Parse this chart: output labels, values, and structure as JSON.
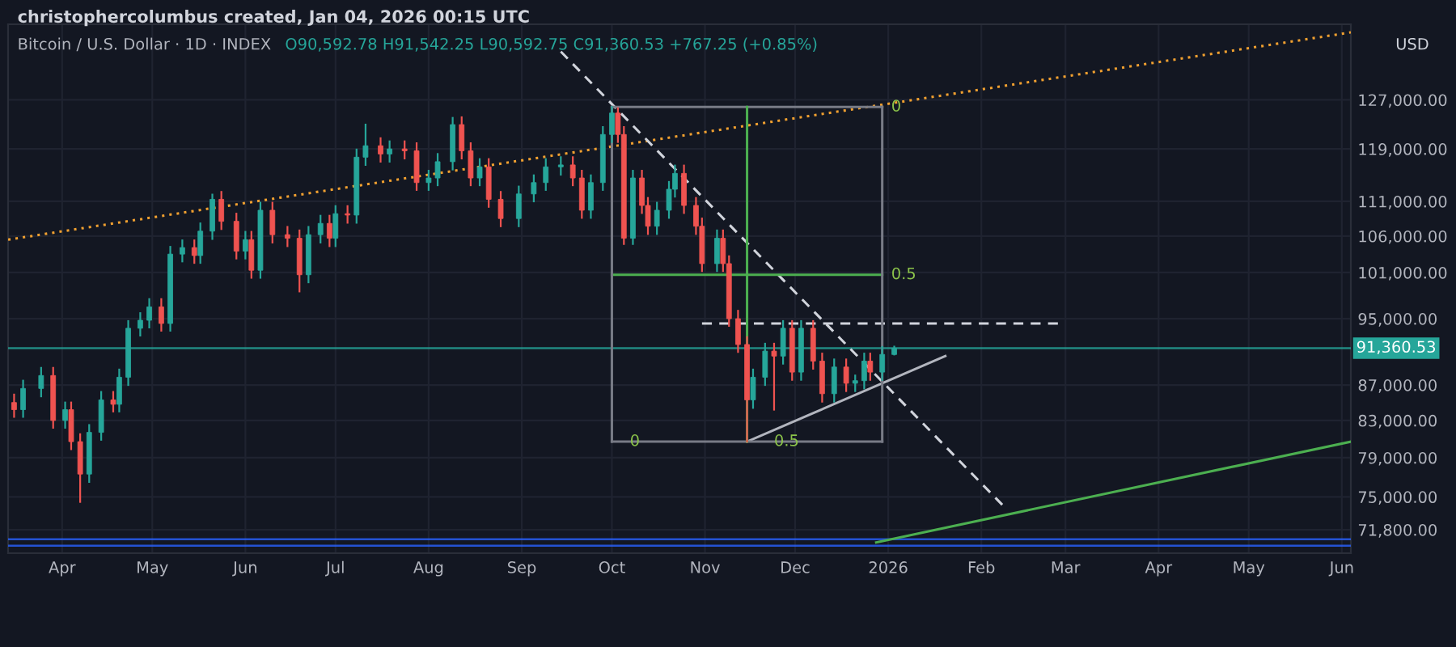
{
  "chart_data": {
    "type": "candlestick",
    "title": "Bitcoin / U.S. Dollar · 1D · INDEX",
    "subtitle": "O90,592.78 H91,542.25 L90,592.75 C91,360.53 +767.25 (+0.85%)",
    "annotations": [
      "christophercolumbus created, Jan 04, 2026 00:15 UTC",
      "USD",
      {
        "text": "0",
        "x": "2025-12-30",
        "y": 125800
      },
      {
        "text": "0.5",
        "x": "2025-12-30",
        "y": 100700
      },
      {
        "text": "0",
        "x": "2025-10-04",
        "y": 80700
      },
      {
        "text": "0.5",
        "x": "2025-11-21",
        "y": 80700
      }
    ],
    "x": [
      "2025-03-16",
      "2025-03-19",
      "2025-03-25",
      "2025-03-29",
      "2025-04-02",
      "2025-04-04",
      "2025-04-07",
      "2025-04-10",
      "2025-04-14",
      "2025-04-18",
      "2025-04-20",
      "2025-04-23",
      "2025-04-27",
      "2025-04-30",
      "2025-05-04",
      "2025-05-07",
      "2025-05-11",
      "2025-05-15",
      "2025-05-17",
      "2025-05-21",
      "2025-05-24",
      "2025-05-29",
      "2025-06-01",
      "2025-06-03",
      "2025-06-06",
      "2025-06-10",
      "2025-06-15",
      "2025-06-19",
      "2025-06-22",
      "2025-06-26",
      "2025-06-29",
      "2025-07-01",
      "2025-07-05",
      "2025-07-08",
      "2025-07-11",
      "2025-07-16",
      "2025-07-19",
      "2025-07-24",
      "2025-07-28",
      "2025-08-01",
      "2025-08-04",
      "2025-08-09",
      "2025-08-12",
      "2025-08-15",
      "2025-08-18",
      "2025-08-21",
      "2025-08-25",
      "2025-08-31",
      "2025-09-05",
      "2025-09-09",
      "2025-09-14",
      "2025-09-18",
      "2025-09-21",
      "2025-09-24",
      "2025-09-28",
      "2025-10-01",
      "2025-10-03",
      "2025-10-05",
      "2025-10-08",
      "2025-10-11",
      "2025-10-13",
      "2025-10-16",
      "2025-10-20",
      "2025-10-22",
      "2025-10-25",
      "2025-10-29",
      "2025-10-31",
      "2025-11-05",
      "2025-11-07",
      "2025-11-09",
      "2025-11-12",
      "2025-11-15",
      "2025-11-17",
      "2025-11-21",
      "2025-11-24",
      "2025-11-27",
      "2025-11-30",
      "2025-12-03",
      "2025-12-07",
      "2025-12-10",
      "2025-12-14",
      "2025-12-18",
      "2025-12-21",
      "2025-12-24",
      "2025-12-26",
      "2025-12-30",
      "2026-01-03"
    ],
    "ohlc": [
      [
        85000,
        85900,
        83400,
        84200
      ],
      [
        84200,
        87500,
        83400,
        86600
      ],
      [
        86600,
        89000,
        85700,
        88100
      ],
      [
        88100,
        89000,
        82200,
        83000
      ],
      [
        83000,
        85000,
        82200,
        84200
      ],
      [
        84200,
        85000,
        79900,
        80700
      ],
      [
        80700,
        81500,
        74500,
        77300
      ],
      [
        77300,
        82500,
        76500,
        81700
      ],
      [
        81700,
        86200,
        80900,
        85300
      ],
      [
        85300,
        86200,
        84000,
        84800
      ],
      [
        84800,
        88800,
        84000,
        87900
      ],
      [
        87900,
        94700,
        87000,
        93800
      ],
      [
        93800,
        95700,
        92900,
        94800
      ],
      [
        94800,
        97500,
        93900,
        96500
      ],
      [
        96500,
        97500,
        93500,
        94400
      ],
      [
        94400,
        104500,
        93500,
        103500
      ],
      [
        103500,
        105400,
        102500,
        104400
      ],
      [
        104400,
        105400,
        102300,
        103300
      ],
      [
        103300,
        107800,
        102300,
        106700
      ],
      [
        106700,
        112000,
        105600,
        111300
      ],
      [
        111300,
        112400,
        107000,
        108100
      ],
      [
        108100,
        109200,
        102900,
        103900
      ],
      [
        103900,
        106600,
        102900,
        105500
      ],
      [
        105500,
        106600,
        100300,
        101300
      ],
      [
        101300,
        110800,
        100300,
        109700
      ],
      [
        109700,
        110800,
        105100,
        106200
      ],
      [
        106200,
        107300,
        104600,
        105700
      ],
      [
        105700,
        106800,
        98500,
        100700
      ],
      [
        100700,
        107300,
        99700,
        106200
      ],
      [
        106200,
        108900,
        105100,
        107800
      ],
      [
        107800,
        108900,
        104600,
        105700
      ],
      [
        105700,
        110300,
        104600,
        109200
      ],
      [
        109200,
        110300,
        107900,
        109000
      ],
      [
        109000,
        118900,
        107900,
        117700
      ],
      [
        117700,
        122900,
        116500,
        119500
      ],
      [
        119500,
        120700,
        117000,
        118200
      ],
      [
        118200,
        120200,
        117000,
        119000
      ],
      [
        119000,
        120200,
        117500,
        118700
      ],
      [
        118700,
        119900,
        112700,
        113800
      ],
      [
        113800,
        115600,
        112700,
        114500
      ],
      [
        114500,
        118200,
        113400,
        117000
      ],
      [
        117000,
        124000,
        115800,
        122900
      ],
      [
        122900,
        124100,
        117500,
        118700
      ],
      [
        118700,
        119900,
        113400,
        114500
      ],
      [
        114500,
        117400,
        113400,
        116200
      ],
      [
        116200,
        117400,
        110200,
        111300
      ],
      [
        111300,
        112400,
        107400,
        108500
      ],
      [
        108500,
        113200,
        107400,
        112100
      ],
      [
        112100,
        114900,
        111000,
        113800
      ],
      [
        113800,
        117400,
        112700,
        116200
      ],
      [
        116200,
        117700,
        115000,
        116500
      ],
      [
        116500,
        117700,
        113400,
        114500
      ],
      [
        114500,
        115600,
        108600,
        109700
      ],
      [
        109700,
        114900,
        108600,
        113800
      ],
      [
        113800,
        122500,
        112700,
        121300
      ],
      [
        121300,
        125800,
        120100,
        124800
      ],
      [
        124800,
        125600,
        120100,
        121300
      ],
      [
        121300,
        122500,
        104900,
        105700
      ],
      [
        105700,
        115600,
        104900,
        114500
      ],
      [
        114500,
        115600,
        109300,
        110400
      ],
      [
        110400,
        111500,
        106300,
        107400
      ],
      [
        107400,
        110800,
        106300,
        109700
      ],
      [
        109700,
        113900,
        108600,
        112800
      ],
      [
        112800,
        116400,
        111700,
        115200
      ],
      [
        115200,
        116400,
        109300,
        110400
      ],
      [
        110400,
        111500,
        106300,
        107400
      ],
      [
        107400,
        108500,
        101200,
        102200
      ],
      [
        102200,
        106800,
        101200,
        105700
      ],
      [
        105700,
        106800,
        101200,
        102200
      ],
      [
        102200,
        103200,
        94100,
        95000
      ],
      [
        95000,
        96000,
        90900,
        91800
      ],
      [
        91800,
        92700,
        80700,
        85300
      ],
      [
        85300,
        88800,
        84400,
        87900
      ],
      [
        87900,
        91900,
        87000,
        91000
      ],
      [
        91000,
        91900,
        84200,
        90400
      ],
      [
        90400,
        94700,
        89500,
        93800
      ],
      [
        93800,
        94700,
        87600,
        88500
      ],
      [
        88500,
        94700,
        87600,
        93800
      ],
      [
        93800,
        94700,
        88900,
        89800
      ],
      [
        89800,
        90700,
        85100,
        86000
      ],
      [
        86000,
        90000,
        85100,
        89100
      ],
      [
        89100,
        90000,
        86300,
        87200
      ],
      [
        87200,
        88100,
        86300,
        87500
      ],
      [
        87500,
        90700,
        86600,
        89800
      ],
      [
        89800,
        90700,
        87600,
        88500
      ],
      [
        88500,
        91500,
        87600,
        90600
      ],
      [
        90592.78,
        91542.25,
        90592.75,
        91360.53
      ]
    ],
    "colors": [
      "#ef5350",
      "#26a69a",
      "#26a69a",
      "#ef5350",
      "#26a69a",
      "#ef5350",
      "#ef5350",
      "#26a69a",
      "#26a69a",
      "#ef5350",
      "#26a69a",
      "#26a69a",
      "#26a69a",
      "#26a69a",
      "#ef5350",
      "#26a69a",
      "#26a69a",
      "#ef5350",
      "#26a69a",
      "#26a69a",
      "#ef5350",
      "#ef5350",
      "#26a69a",
      "#ef5350",
      "#26a69a",
      "#ef5350",
      "#ef5350",
      "#ef5350",
      "#26a69a",
      "#26a69a",
      "#ef5350",
      "#26a69a",
      "#ef5350",
      "#26a69a",
      "#26a69a",
      "#ef5350",
      "#26a69a",
      "#ef5350",
      "#ef5350",
      "#26a69a",
      "#26a69a",
      "#26a69a",
      "#ef5350",
      "#ef5350",
      "#26a69a",
      "#ef5350",
      "#ef5350",
      "#26a69a",
      "#26a69a",
      "#26a69a",
      "#26a69a",
      "#ef5350",
      "#ef5350",
      "#26a69a",
      "#26a69a",
      "#26a69a",
      "#ef5350",
      "#ef5350",
      "#26a69a",
      "#ef5350",
      "#ef5350",
      "#26a69a",
      "#26a69a",
      "#26a69a",
      "#ef5350",
      "#ef5350",
      "#ef5350",
      "#26a69a",
      "#ef5350",
      "#ef5350",
      "#ef5350",
      "#ef5350",
      "#26a69a",
      "#26a69a",
      "#ef5350",
      "#26a69a",
      "#ef5350",
      "#26a69a",
      "#ef5350",
      "#ef5350",
      "#26a69a",
      "#ef5350",
      "#26a69a",
      "#26a69a",
      "#ef5350",
      "#26a69a",
      "#26a69a"
    ],
    "series": [
      {
        "type": "line",
        "color": "#f0a030",
        "line_style": "dotted",
        "x": [
          "2025-03-14",
          "2026-06-04"
        ],
        "values": [
          105500,
          138900
        ]
      },
      {
        "type": "line",
        "color": "#d1d4dc",
        "line_style": "dashed",
        "x": [
          "2025-09-14",
          "2026-02-08"
        ],
        "values": [
          135400,
          74200
        ]
      },
      {
        "type": "line",
        "color": "#b2b5be",
        "line_style": "solid",
        "x": [
          "2025-11-15",
          "2026-01-20"
        ],
        "values": [
          80700,
          90400
        ]
      },
      {
        "type": "line",
        "color": "#4caf50",
        "line_style": "solid",
        "x": [
          "2025-12-28",
          "2026-06-04"
        ],
        "values": [
          70600,
          80700
        ]
      },
      {
        "type": "line",
        "color": "#d1d4dc",
        "line_style": "dashed",
        "x": [
          "2025-10-31",
          "2026-02-27"
        ],
        "values": [
          94400,
          94400
        ]
      },
      {
        "type": "line",
        "color": "#787b86",
        "line_style": "solid",
        "x": [
          "2025-10-01",
          "2025-12-30"
        ],
        "values": [
          125800,
          125800
        ]
      },
      {
        "type": "line",
        "color": "#4caf50",
        "line_style": "solid",
        "x": [
          "2025-10-01",
          "2025-12-30"
        ],
        "values": [
          100700,
          100700
        ]
      },
      {
        "type": "line",
        "color": "#787b86",
        "line_style": "solid",
        "x": [
          "2025-10-01",
          "2025-12-30"
        ],
        "values": [
          80700,
          80700
        ]
      },
      {
        "type": "line",
        "color": "#787b86",
        "line_style": "solid",
        "x": [
          "2025-10-01",
          "2025-10-01"
        ],
        "values": [
          80700,
          125800
        ]
      },
      {
        "type": "line",
        "color": "#4caf50",
        "line_style": "solid",
        "x": [
          "2025-11-15",
          "2025-11-15"
        ],
        "values": [
          80700,
          125800
        ]
      },
      {
        "type": "line",
        "color": "#787b86",
        "line_style": "solid",
        "x": [
          "2025-12-30",
          "2025-12-30"
        ],
        "values": [
          80700,
          125800
        ]
      }
    ],
    "ref_lines": [
      {
        "axis": "y",
        "value": 91360.53,
        "label": "91,360.53",
        "color": "#26a69a",
        "line_style": "solid"
      },
      {
        "axis": "y",
        "value": 70900,
        "label": null,
        "color": "#2962ff",
        "line_style": "solid"
      },
      {
        "axis": "y",
        "value": 70300,
        "label": null,
        "color": "#2962ff",
        "line_style": "solid"
      }
    ],
    "log": "y",
    "xlim": [
      "2025-03-14",
      "2026-06-04"
    ],
    "xticks": [
      {
        "value": "2025-04-01",
        "label": "Apr"
      },
      {
        "value": "2025-05-01",
        "label": "May"
      },
      {
        "value": "2025-06-01",
        "label": "Jun"
      },
      {
        "value": "2025-07-01",
        "label": "Jul"
      },
      {
        "value": "2025-08-01",
        "label": "Aug"
      },
      {
        "value": "2025-09-01",
        "label": "Sep"
      },
      {
        "value": "2025-10-01",
        "label": "Oct"
      },
      {
        "value": "2025-11-01",
        "label": "Nov"
      },
      {
        "value": "2025-12-01",
        "label": "Dec"
      },
      {
        "value": "2026-01-01",
        "label": "2026"
      },
      {
        "value": "2026-02-01",
        "label": "Feb"
      },
      {
        "value": "2026-03-01",
        "label": "Mar"
      },
      {
        "value": "2026-04-01",
        "label": "Apr"
      },
      {
        "value": "2026-05-01",
        "label": "May"
      },
      {
        "value": "2026-06-01",
        "label": "Jun"
      }
    ],
    "ylim": [
      69600,
      140400
    ],
    "yticks": [
      {
        "value": 127000,
        "label": "127,000.00"
      },
      {
        "value": 119000,
        "label": "119,000.00"
      },
      {
        "value": 111000,
        "label": "111,000.00"
      },
      {
        "value": 106000,
        "label": "106,000.00"
      },
      {
        "value": 101000,
        "label": "101,000.00"
      },
      {
        "value": 95000,
        "label": "95,000.00"
      },
      {
        "value": 87000,
        "label": "87,000.00"
      },
      {
        "value": 83000,
        "label": "83,000.00"
      },
      {
        "value": 79000,
        "label": "79,000.00"
      },
      {
        "value": 75000,
        "label": "75,000.00"
      },
      {
        "value": 71800,
        "label": "71,800.00"
      }
    ],
    "grid": true
  }
}
